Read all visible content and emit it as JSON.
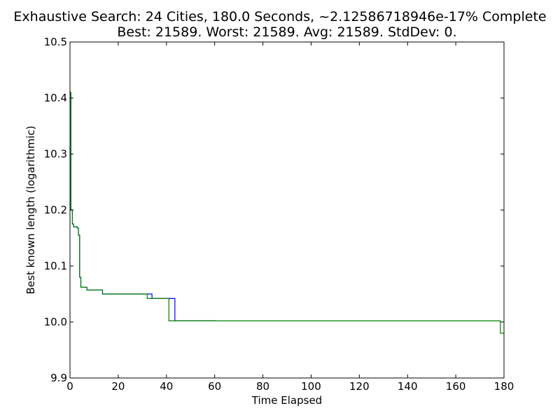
{
  "chart_data": {
    "type": "line",
    "title": "Exhaustive Search: 24 Cities, 180.0 Seconds, ~2.12586718946e-17% Complete",
    "subtitle": "Best: 21589. Worst: 21589. Avg: 21589. StdDev: 0.",
    "xlabel": "Time Elapsed",
    "ylabel": "Best known length (logarithmic)",
    "xlim": [
      0,
      180
    ],
    "ylim": [
      9.9,
      10.5
    ],
    "xticks": [
      "0",
      "20",
      "40",
      "60",
      "80",
      "100",
      "120",
      "140",
      "160",
      "180"
    ],
    "yticks": [
      "9.9",
      "10.0",
      "10.1",
      "10.2",
      "10.3",
      "10.4",
      "10.5"
    ],
    "grid": false,
    "series": [
      {
        "color": "#0000ff",
        "step": true,
        "x": [
          0,
          0.4,
          1,
          1.5,
          3,
          3.5,
          4,
          4.5,
          7,
          13.5,
          34,
          43.5,
          60.5
        ],
        "y": [
          10.41,
          10.2,
          10.175,
          10.17,
          10.168,
          10.155,
          10.08,
          10.062,
          10.057,
          10.05,
          10.042,
          10.002,
          10.002
        ]
      },
      {
        "color": "#008000",
        "step": true,
        "x": [
          0,
          0.4,
          1,
          1.5,
          3,
          3.5,
          4,
          4.5,
          7,
          13.5,
          32,
          41,
          178.5,
          180
        ],
        "y": [
          10.41,
          10.2,
          10.175,
          10.17,
          10.168,
          10.155,
          10.08,
          10.062,
          10.057,
          10.05,
          10.042,
          10.002,
          9.98,
          9.98
        ]
      }
    ]
  }
}
